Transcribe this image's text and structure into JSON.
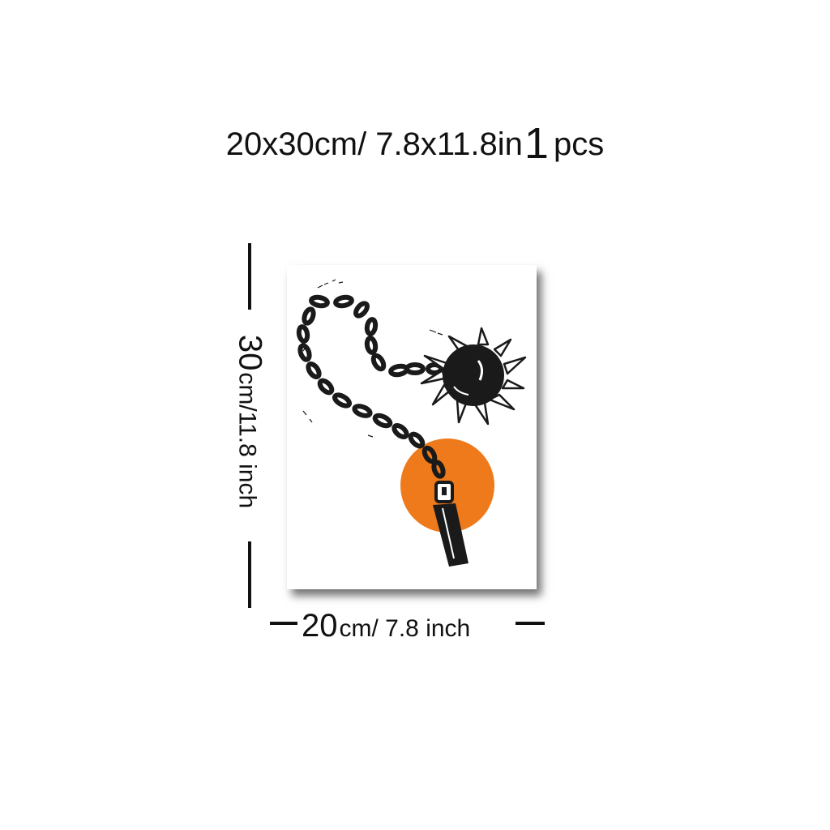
{
  "headline": {
    "size_text": "20x30cm/ 7.8x11.8in",
    "count": "1",
    "unit": "pcs"
  },
  "height_label": {
    "number": "30",
    "unit_text": "cm/11.8 inch"
  },
  "width_label": {
    "number": "20",
    "unit_text": "cm/ 7.8 inch"
  },
  "artwork": {
    "subject": "flail with spiked ball and chain over orange sun",
    "colors": {
      "ink": "#1a1a1a",
      "sun": "#ee7a1c",
      "paper": "#ffffff"
    }
  }
}
